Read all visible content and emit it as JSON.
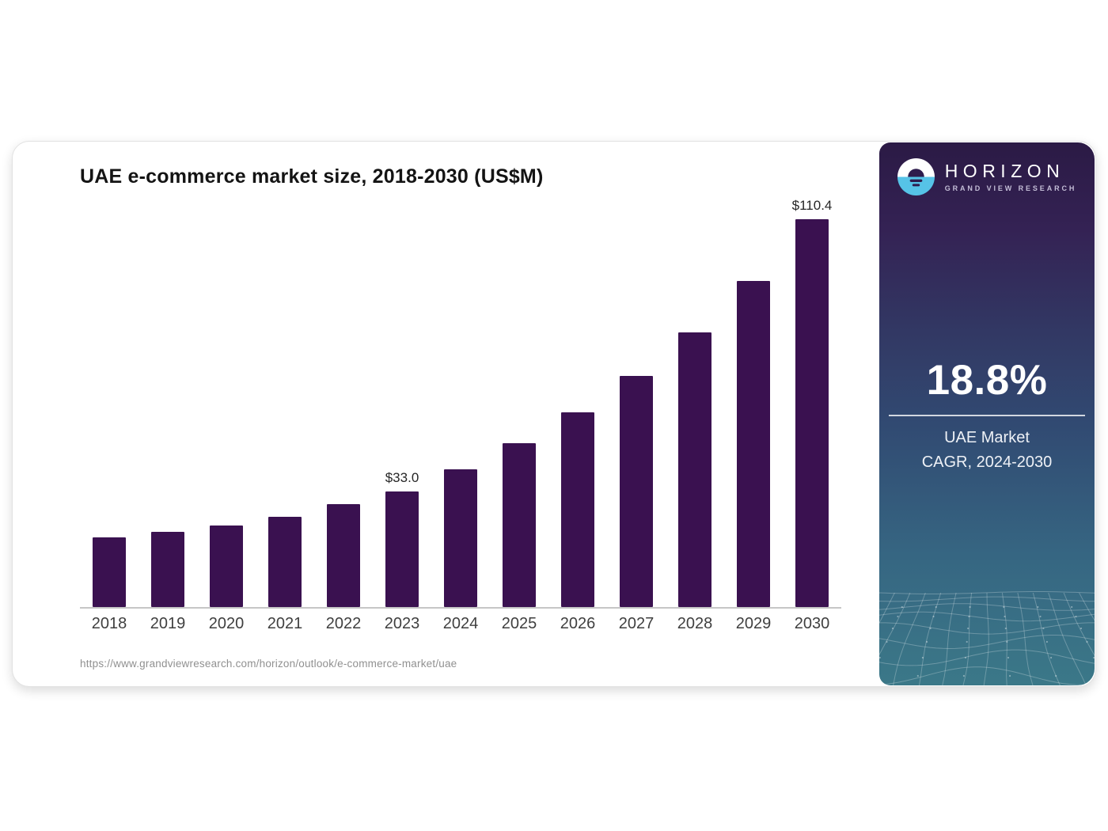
{
  "header": {
    "title": "UAE e-commerce market size, 2018-2030 (US$M)"
  },
  "chart_data": {
    "type": "bar",
    "title": "UAE e-commerce market size, 2018-2030 (US$M)",
    "categories": [
      "2018",
      "2019",
      "2020",
      "2021",
      "2022",
      "2023",
      "2024",
      "2025",
      "2026",
      "2027",
      "2028",
      "2029",
      "2030"
    ],
    "values": [
      19.9,
      21.5,
      23.1,
      25.8,
      29.4,
      33.0,
      39.3,
      46.7,
      55.4,
      65.8,
      78.2,
      92.9,
      110.4
    ],
    "unit": "US$M",
    "data_labels": {
      "2023": "$33.0",
      "2030": "$110.4"
    },
    "bar_color": "#3a1150",
    "axis_color": "#c6c6c6",
    "ylim": [
      0,
      110.4
    ],
    "grid": false,
    "legend": false,
    "xlabel": "",
    "ylabel": ""
  },
  "footer": {
    "source_url": "https://www.grandviewresearch.com/horizon/outlook/e-commerce-market/uae"
  },
  "sidebar": {
    "brand": "HORIZON",
    "brand_sub": "GRAND VIEW RESEARCH",
    "stat_value": "18.8%",
    "stat_label_line1": "UAE Market",
    "stat_label_line2": "CAGR, 2024-2030",
    "icons": {
      "logo": "horizon-sunset-logo-icon"
    },
    "colors": {
      "gradient_top": "#2b1a45",
      "gradient_mid": "#314a72",
      "gradient_bottom": "#3b7888",
      "logo_blue": "#56c3e7",
      "logo_dark": "#2e1c4d",
      "mesh_line": "rgba(255,255,255,0.26)"
    }
  }
}
